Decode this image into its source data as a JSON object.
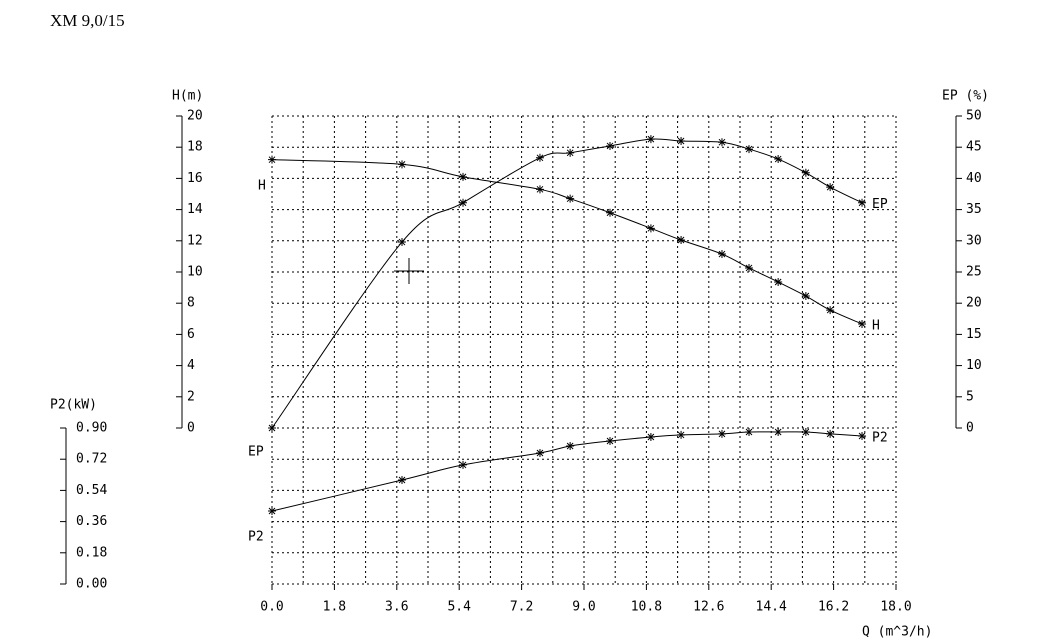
{
  "chart_data": {
    "type": "line",
    "title": "XM 9,0/15",
    "xlabel": "Q (m^3/h)",
    "ylabel": "H(m)",
    "y2label": "EP (%)",
    "y3label": "P2(kW)",
    "x": [
      0,
      3.75,
      5.51,
      7.73,
      8.6,
      9.75,
      10.93,
      11.8,
      12.98,
      13.76,
      14.6,
      15.4,
      16.1,
      17.02
    ],
    "xlim": [
      0,
      18
    ],
    "xticks": [
      {
        "value": 0,
        "label": "0.0"
      },
      1.8,
      3.6,
      5.4,
      7.2,
      {
        "value": 9,
        "label": "9.0"
      },
      10.8,
      12.6,
      14.4,
      16.2,
      {
        "value": 18,
        "label": "18.0"
      }
    ],
    "ylim": [
      0,
      20
    ],
    "yticks": [
      0,
      2,
      4,
      6,
      8,
      10,
      12,
      14,
      16,
      18,
      20
    ],
    "y2lim": [
      0,
      50
    ],
    "y2ticks": [
      0,
      5,
      10,
      15,
      20,
      25,
      30,
      35,
      40,
      45,
      50
    ],
    "y3lim": [
      0,
      0.9
    ],
    "y3ticks": [
      {
        "value": 0,
        "label": "0.00"
      },
      {
        "value": 0.18,
        "label": "0.18"
      },
      {
        "value": 0.36,
        "label": "0.36"
      },
      {
        "value": 0.54,
        "label": "0.54"
      },
      {
        "value": 0.72,
        "label": "0.72"
      },
      {
        "value": 0.9,
        "label": "0.90"
      }
    ],
    "grid": true,
    "series": [
      {
        "name": "H",
        "color": "#000000",
        "axis": "y",
        "values": [
          17.2,
          16.9,
          16.1,
          15.3,
          14.7,
          13.8,
          12.8,
          12.05,
          11.15,
          10.26,
          9.36,
          8.46,
          7.56,
          6.67
        ]
      },
      {
        "name": "EP",
        "color": "#000000",
        "axis": "y2",
        "values": [
          0,
          29.8,
          36.1,
          43.3,
          44.1,
          45.2,
          46.3,
          46.0,
          45.8,
          44.7,
          43.1,
          40.9,
          38.6,
          36.1
        ]
      },
      {
        "name": "P2",
        "color": "#000000",
        "axis": "y3",
        "values": [
          0.421,
          0.6,
          0.687,
          0.756,
          0.796,
          0.825,
          0.848,
          0.86,
          0.866,
          0.877,
          0.877,
          0.877,
          0.866,
          0.854
        ]
      }
    ]
  }
}
